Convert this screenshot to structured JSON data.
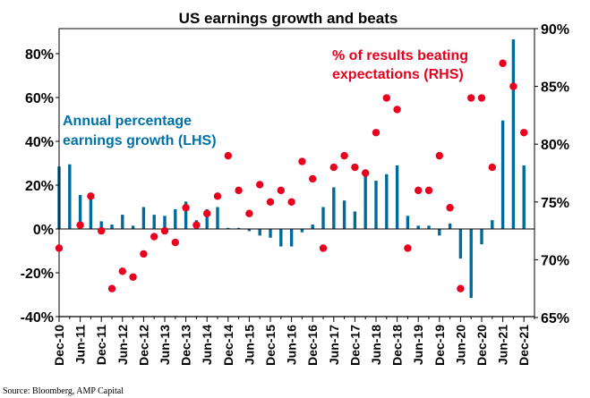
{
  "chart_data": {
    "type": "bar+scatter",
    "title": "US earnings growth and beats",
    "source": "Source: Bloomberg, AMP Capital",
    "x_labels": [
      "Dec-10",
      "Jun-11",
      "Dec-11",
      "Jun-12",
      "Dec-12",
      "Jun-13",
      "Dec-13",
      "Jun-14",
      "Dec-14",
      "Jun-15",
      "Dec-15",
      "Jun-16",
      "Dec-16",
      "Jun-17",
      "Dec-17",
      "Jun-18",
      "Dec-18",
      "Jun-19",
      "Dec-19",
      "Jun-20",
      "Dec-20",
      "Jun-21",
      "Dec-21"
    ],
    "x_start": "Dec-10",
    "frequency": "quarterly",
    "left_axis": {
      "ticks": [
        "-40%",
        "-20%",
        "0%",
        "20%",
        "40%",
        "60%",
        "80%"
      ],
      "range": [
        -40,
        90
      ]
    },
    "right_axis": {
      "ticks": [
        "65%",
        "70%",
        "75%",
        "80%",
        "85%",
        "90%"
      ],
      "range": [
        65,
        90
      ]
    },
    "annotations": {
      "lhs": [
        "Annual percentage",
        "earnings growth (LHS)"
      ],
      "rhs": [
        "% of results beating",
        "expectations (RHS)"
      ]
    },
    "colors": {
      "bars": "#006a9b",
      "dots": "#e8001e",
      "lhs_text": "#0071a8",
      "rhs_text": "#e8001e"
    },
    "series": [
      {
        "name": "Annual percentage earnings growth (LHS)",
        "axis": "left",
        "style": "bar",
        "values": [
          28.5,
          29.5,
          15.5,
          14.5,
          3.5,
          2,
          6.5,
          1.5,
          10,
          6.5,
          6,
          9,
          12.5,
          4,
          9,
          10,
          0.5,
          0.5,
          -1,
          -3,
          -4,
          -8,
          -8,
          -1.5,
          2,
          10,
          19,
          13,
          8,
          25,
          22,
          25,
          29,
          6,
          1.5,
          1.5,
          -3,
          2.5,
          -13.5,
          -31.5,
          -7,
          4,
          49.5,
          86.5,
          29
        ]
      },
      {
        "name": "% of results beating expectations (RHS)",
        "axis": "right",
        "style": "dot",
        "values": [
          71,
          null,
          73,
          75.5,
          72.5,
          67.5,
          69,
          68.5,
          70.5,
          72,
          72.5,
          71.5,
          74.5,
          73,
          74,
          75.5,
          79,
          76,
          74,
          76.5,
          75,
          76,
          75,
          78.5,
          77,
          71,
          78,
          79,
          78,
          77.5,
          81,
          84,
          83,
          71,
          76,
          76,
          79,
          74.5,
          67.5,
          84,
          84,
          78,
          87,
          85,
          81
        ]
      }
    ]
  }
}
